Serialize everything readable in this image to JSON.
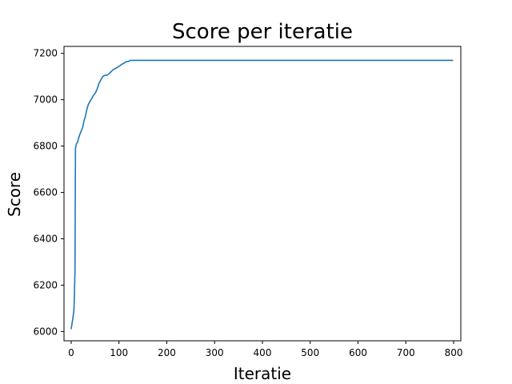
{
  "chart_data": {
    "type": "line",
    "title": "Score per iteratie",
    "xlabel": "Iteratie",
    "ylabel": "Score",
    "xlim": [
      -15,
      815
    ],
    "ylim": [
      5960,
      7230
    ],
    "xticks": [
      0,
      100,
      200,
      300,
      400,
      500,
      600,
      700,
      800
    ],
    "yticks": [
      6000,
      6200,
      6400,
      6600,
      6800,
      7000,
      7200
    ],
    "grid": false,
    "color": "#1f77b4",
    "series": [
      {
        "x": [
          0,
          3,
          5,
          6,
          8,
          9,
          10,
          11,
          13,
          15,
          18,
          20,
          24,
          27,
          30,
          33,
          36,
          40,
          43,
          47,
          51,
          55,
          58,
          62,
          66,
          70,
          74,
          78,
          83,
          88,
          93,
          97,
          101,
          104,
          108,
          112,
          116,
          120,
          124,
          130,
          200,
          400,
          600,
          799
        ],
        "y": [
          6010,
          6050,
          6080,
          6100,
          6260,
          6790,
          6800,
          6810,
          6815,
          6830,
          6850,
          6860,
          6880,
          6910,
          6930,
          6960,
          6980,
          6995,
          7005,
          7020,
          7030,
          7050,
          7070,
          7085,
          7100,
          7105,
          7105,
          7110,
          7120,
          7130,
          7135,
          7140,
          7145,
          7150,
          7155,
          7160,
          7165,
          7165,
          7170,
          7170,
          7170,
          7170,
          7170,
          7170
        ]
      }
    ]
  }
}
